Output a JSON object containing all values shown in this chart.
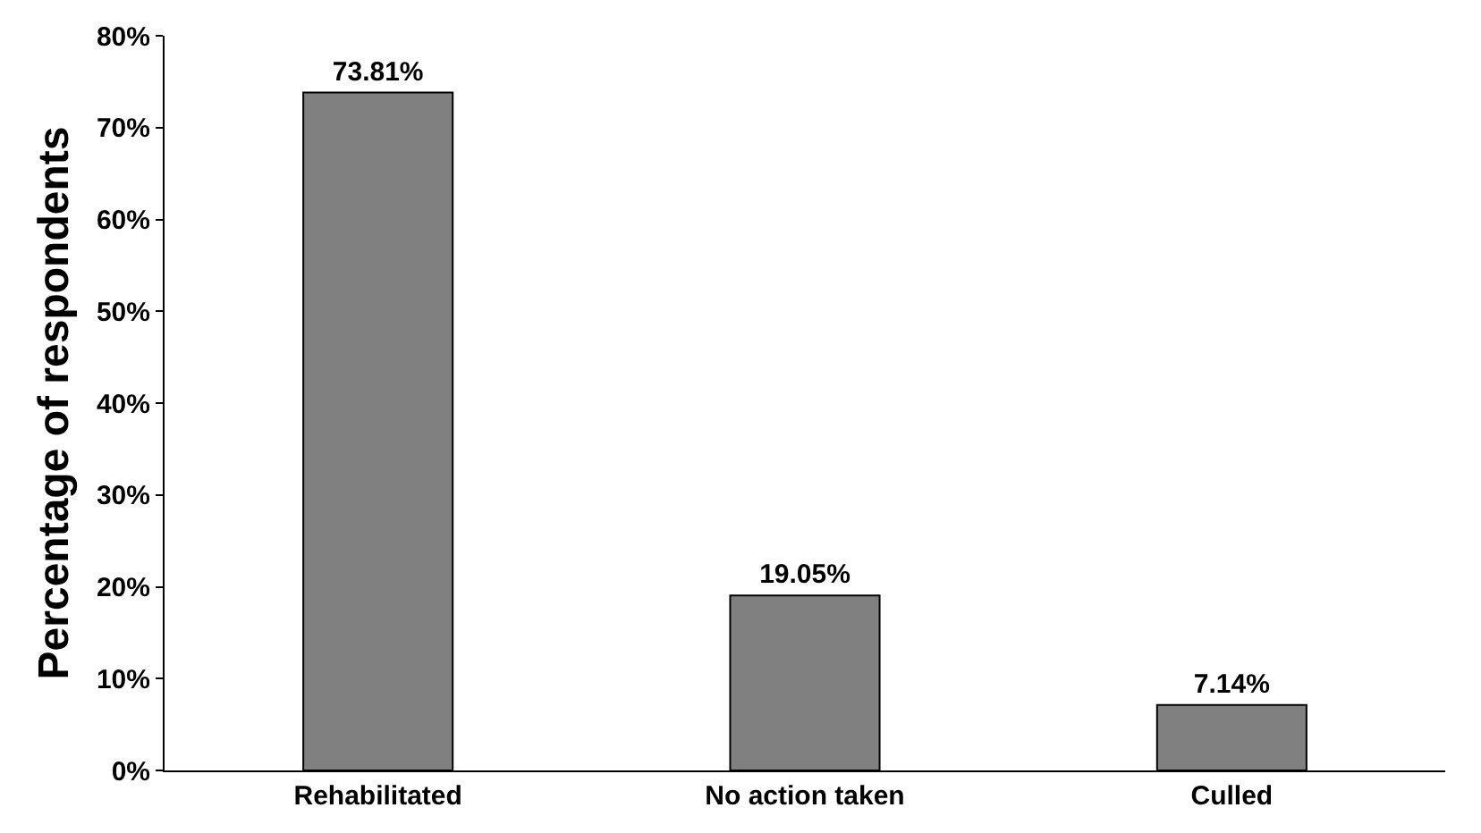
{
  "chart_data": {
    "type": "bar",
    "ylabel": "Percentage of respondents",
    "categories": [
      "Rehabilitated",
      "No action taken",
      "Culled"
    ],
    "values": [
      73.81,
      19.05,
      7.14
    ],
    "value_labels": [
      "73.81%",
      "19.05%",
      "7.14%"
    ],
    "color": "#808080",
    "ylim": [
      0,
      80
    ],
    "yticks": [
      {
        "value": 0,
        "label": "0%"
      },
      {
        "value": 10,
        "label": "10%"
      },
      {
        "value": 20,
        "label": "20%"
      },
      {
        "value": 30,
        "label": "30%"
      },
      {
        "value": 40,
        "label": "40%"
      },
      {
        "value": 50,
        "label": "50%"
      },
      {
        "value": 60,
        "label": "60%"
      },
      {
        "value": 70,
        "label": "70%"
      },
      {
        "value": 80,
        "label": "80%"
      }
    ],
    "orientation": "vertical"
  }
}
